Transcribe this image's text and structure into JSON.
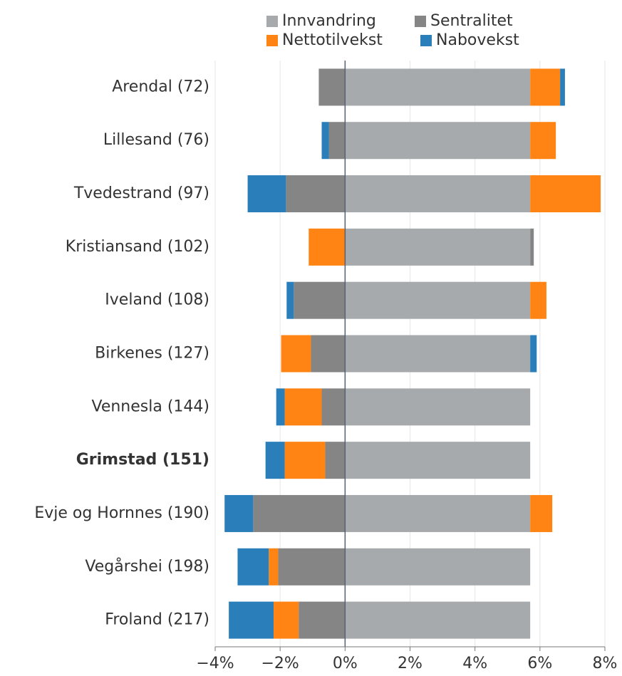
{
  "chart_data": {
    "type": "bar",
    "orientation": "horizontal",
    "stacked": true,
    "categories": [
      "Arendal (72)",
      "Lillesand (76)",
      "Tvedestrand (97)",
      "Kristiansand (102)",
      "Iveland (108)",
      "Birkenes (127)",
      "Vennesla (144)",
      "Grimstad (151)",
      "Evje og Hornnes (190)",
      "Vegårshei (198)",
      "Froland (217)"
    ],
    "bold_category": "Grimstad (151)",
    "series": [
      {
        "name": "Innvandring",
        "color": "#a7aaad",
        "values": [
          5.7,
          5.7,
          5.7,
          5.7,
          5.7,
          5.7,
          5.7,
          5.7,
          5.7,
          5.7,
          5.7
        ]
      },
      {
        "name": "Sentralitet",
        "color": "#858585",
        "values": [
          -0.81,
          -0.5,
          -1.82,
          0.11,
          -1.58,
          -1.05,
          -0.72,
          -0.61,
          -2.83,
          -2.06,
          -1.43
        ]
      },
      {
        "name": "Nettotilvekst",
        "color": "#ff8413",
        "values": [
          0.92,
          0.79,
          2.17,
          -1.12,
          0.5,
          -0.92,
          -1.14,
          -1.25,
          0.68,
          -0.29,
          -0.77
        ]
      },
      {
        "name": "Nabovekst",
        "color": "#2a7fba",
        "values": [
          0.15,
          -0.22,
          -1.18,
          0,
          -0.22,
          0.2,
          -0.26,
          -0.59,
          -0.88,
          -0.96,
          -1.38
        ]
      }
    ],
    "xlim": [
      -4,
      8
    ],
    "xticks": [
      {
        "value": -4,
        "label": "−4%"
      },
      {
        "value": -2,
        "label": "−2%"
      },
      {
        "value": 0,
        "label": "0%"
      },
      {
        "value": 2,
        "label": "2%"
      },
      {
        "value": 4,
        "label": "4%"
      },
      {
        "value": 6,
        "label": "6%"
      },
      {
        "value": 8,
        "label": "8%"
      }
    ],
    "grid": true
  }
}
